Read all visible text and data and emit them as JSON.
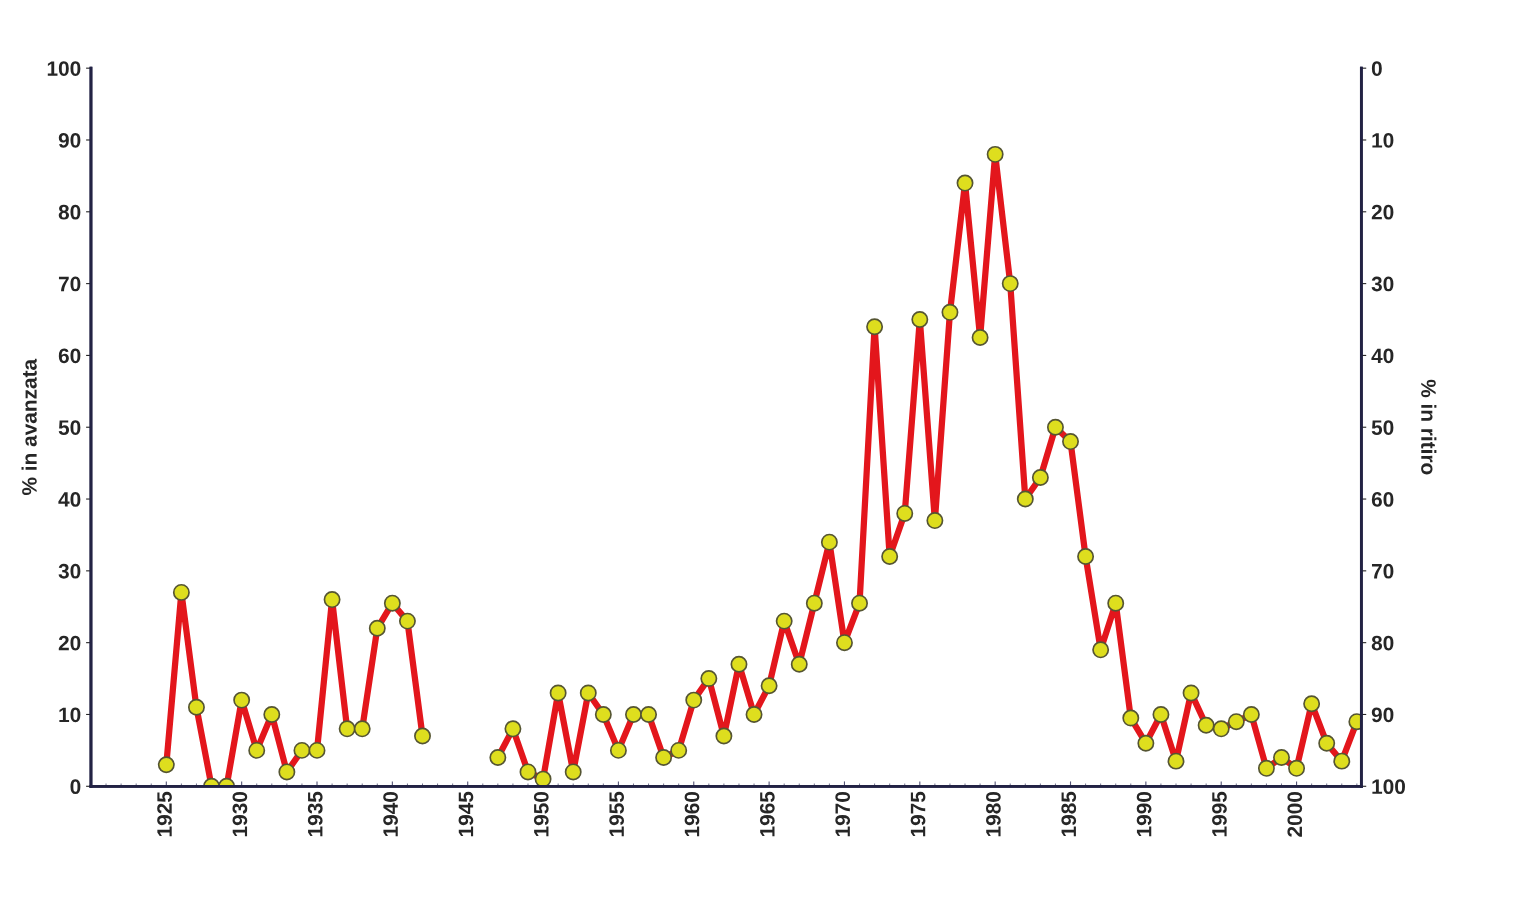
{
  "chart_data": {
    "type": "line",
    "ylabel": "% in avanzata",
    "y2label": "% in ritiro",
    "x": [
      1925,
      1926,
      1927,
      1928,
      1929,
      1930,
      1931,
      1932,
      1933,
      1934,
      1935,
      1936,
      1937,
      1938,
      1939,
      1940,
      1941,
      1942,
      1943,
      1944,
      1945,
      1946,
      1947,
      1948,
      1949,
      1950,
      1951,
      1952,
      1953,
      1954,
      1955,
      1956,
      1957,
      1958,
      1959,
      1960,
      1961,
      1962,
      1963,
      1964,
      1965,
      1966,
      1967,
      1968,
      1969,
      1970,
      1971,
      1972,
      1973,
      1974,
      1975,
      1976,
      1977,
      1978,
      1979,
      1980,
      1981,
      1982,
      1983,
      1984,
      1985,
      1986,
      1987,
      1988,
      1989,
      1990,
      1991,
      1992,
      1993,
      1994,
      1995,
      1996,
      1997,
      1998,
      1999,
      2000,
      2001,
      2002,
      2003,
      2004
    ],
    "series": [
      {
        "color": "#e3161c",
        "values": [
          3,
          27,
          11,
          0,
          0,
          12,
          5,
          10,
          2,
          5,
          5,
          26,
          8,
          8,
          22,
          25.5,
          23,
          7,
          null,
          null,
          null,
          null,
          4,
          8,
          2,
          1,
          13,
          2,
          13,
          10,
          5,
          10,
          10,
          4,
          5,
          12,
          15,
          7,
          17,
          10,
          14,
          23,
          17,
          25.5,
          34,
          20,
          25.5,
          64,
          32,
          38,
          65,
          37,
          66,
          84,
          62.5,
          88,
          70,
          40,
          43,
          50,
          48,
          32,
          19,
          25.5,
          9.5,
          6,
          10,
          3.5,
          13,
          8.5,
          8,
          9,
          10,
          2.5,
          4,
          2.5,
          11.5,
          6,
          3.5,
          9
        ]
      }
    ],
    "xlim": [
      1920,
      2004.3
    ],
    "xticks": [
      1925,
      1930,
      1935,
      1940,
      1945,
      1950,
      1955,
      1960,
      1965,
      1970,
      1975,
      1980,
      1985,
      1990,
      1995,
      2000
    ],
    "ylim": [
      0,
      100
    ],
    "yticks": [
      0,
      10,
      20,
      30,
      40,
      50,
      60,
      70,
      80,
      90,
      100
    ],
    "y2lim": [
      100,
      0
    ],
    "y2ticks": [
      0,
      10,
      20,
      30,
      40,
      50,
      60,
      70,
      80,
      90,
      100
    ],
    "marker": "circle",
    "line_style": "solid",
    "grid": false,
    "legend": false
  }
}
